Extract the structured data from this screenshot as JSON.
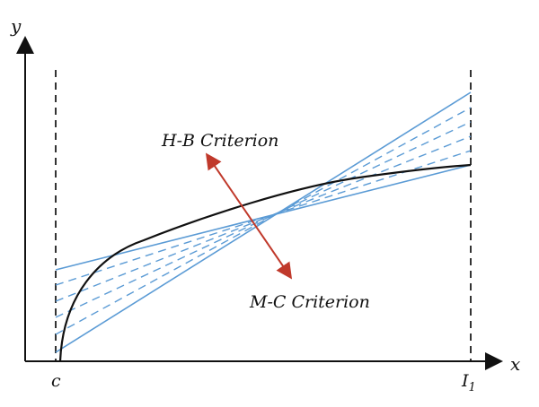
{
  "diagram": {
    "axes": {
      "x_label": "x",
      "y_label": "y",
      "x_tick_left": "c",
      "x_tick_right_main": "I",
      "x_tick_right_sub": "1"
    },
    "annotations": {
      "upper": "H-B Criterion",
      "lower": "M-C Criterion"
    },
    "colors": {
      "axis": "#111111",
      "curve": "#111111",
      "lines": "#5b9bd5",
      "arrow": "#c0392b",
      "boundary": "#333333"
    },
    "elements": {
      "curve": "H-B failure envelope (concave curve)",
      "solid_lines": "fitted M-C straight lines (extremes)",
      "dashed_lines": "intermediate fitted M-C lines"
    }
  }
}
